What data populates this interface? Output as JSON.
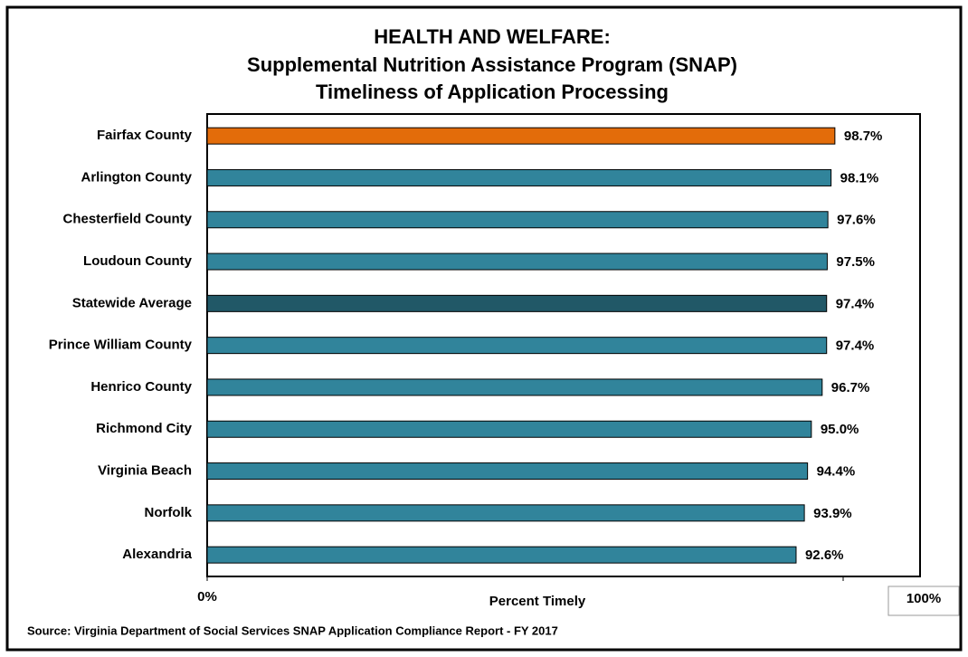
{
  "chart_data": {
    "type": "bar",
    "orientation": "horizontal",
    "title": [
      "HEALTH AND WELFARE:",
      "Supplemental Nutrition Assistance Program (SNAP)",
      "Timeliness of Application Processing"
    ],
    "categories": [
      "Fairfax County",
      "Arlington County",
      "Chesterfield County",
      "Loudoun County",
      "Statewide Average",
      "Prince William County",
      "Henrico County",
      "Richmond City",
      "Virginia Beach",
      "Norfolk",
      "Alexandria"
    ],
    "values": [
      98.7,
      98.1,
      97.6,
      97.5,
      97.4,
      97.4,
      96.7,
      95.0,
      94.4,
      93.9,
      92.6
    ],
    "value_labels": [
      "98.7%",
      "98.1%",
      "97.6%",
      "97.5%",
      "97.4%",
      "97.4%",
      "96.7%",
      "95.0%",
      "94.4%",
      "93.9%",
      "92.6%"
    ],
    "colors": [
      "#e36c0a",
      "#31849b",
      "#31849b",
      "#31849b",
      "#215867",
      "#31849b",
      "#31849b",
      "#31849b",
      "#31849b",
      "#31849b",
      "#31849b"
    ],
    "xlim": [
      0,
      100
    ],
    "xticks": [
      {
        "value": 0,
        "label": "0%"
      },
      {
        "value": 100,
        "label": "100%"
      }
    ],
    "xlabel": "Percent Timely",
    "source": "Source: Virginia Department of Social Services SNAP Application Compliance Report - FY 2017"
  }
}
